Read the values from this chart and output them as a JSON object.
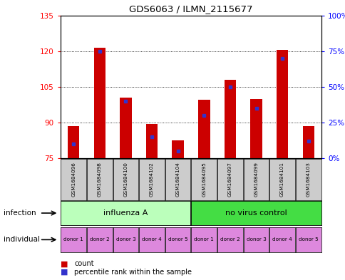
{
  "title": "GDS6063 / ILMN_2115677",
  "samples": [
    "GSM1684096",
    "GSM1684098",
    "GSM1684100",
    "GSM1684102",
    "GSM1684104",
    "GSM1684095",
    "GSM1684097",
    "GSM1684099",
    "GSM1684101",
    "GSM1684103"
  ],
  "count_values": [
    88.5,
    121.5,
    100.5,
    89.5,
    82.5,
    99.5,
    108.0,
    100.0,
    120.5,
    88.5
  ],
  "percentile_values": [
    10,
    75,
    40,
    15,
    5,
    30,
    50,
    35,
    70,
    12
  ],
  "ylim_left": [
    75,
    135
  ],
  "ylim_right": [
    0,
    100
  ],
  "yticks_left": [
    75,
    90,
    105,
    120,
    135
  ],
  "ytick_labels_right": [
    "0%",
    "25%",
    "50%",
    "75%",
    "100%"
  ],
  "bar_color": "#cc0000",
  "percentile_color": "#3333cc",
  "infection_groups": [
    {
      "label": "influenza A",
      "start": 0,
      "end": 5,
      "color": "#bbffbb"
    },
    {
      "label": "no virus control",
      "start": 5,
      "end": 10,
      "color": "#44dd44"
    }
  ],
  "individual_labels": [
    "donor 1",
    "donor 2",
    "donor 3",
    "donor 4",
    "donor 5",
    "donor 1",
    "donor 2",
    "donor 3",
    "donor 4",
    "donor 5"
  ],
  "individual_color": "#dd88dd",
  "sample_bg_color": "#cccccc",
  "grid_color": "#555555",
  "background_color": "#ffffff",
  "bar_width": 0.45,
  "infection_label": "infection",
  "individual_label": "individual",
  "legend_count": "count",
  "legend_pct": "percentile rank within the sample"
}
